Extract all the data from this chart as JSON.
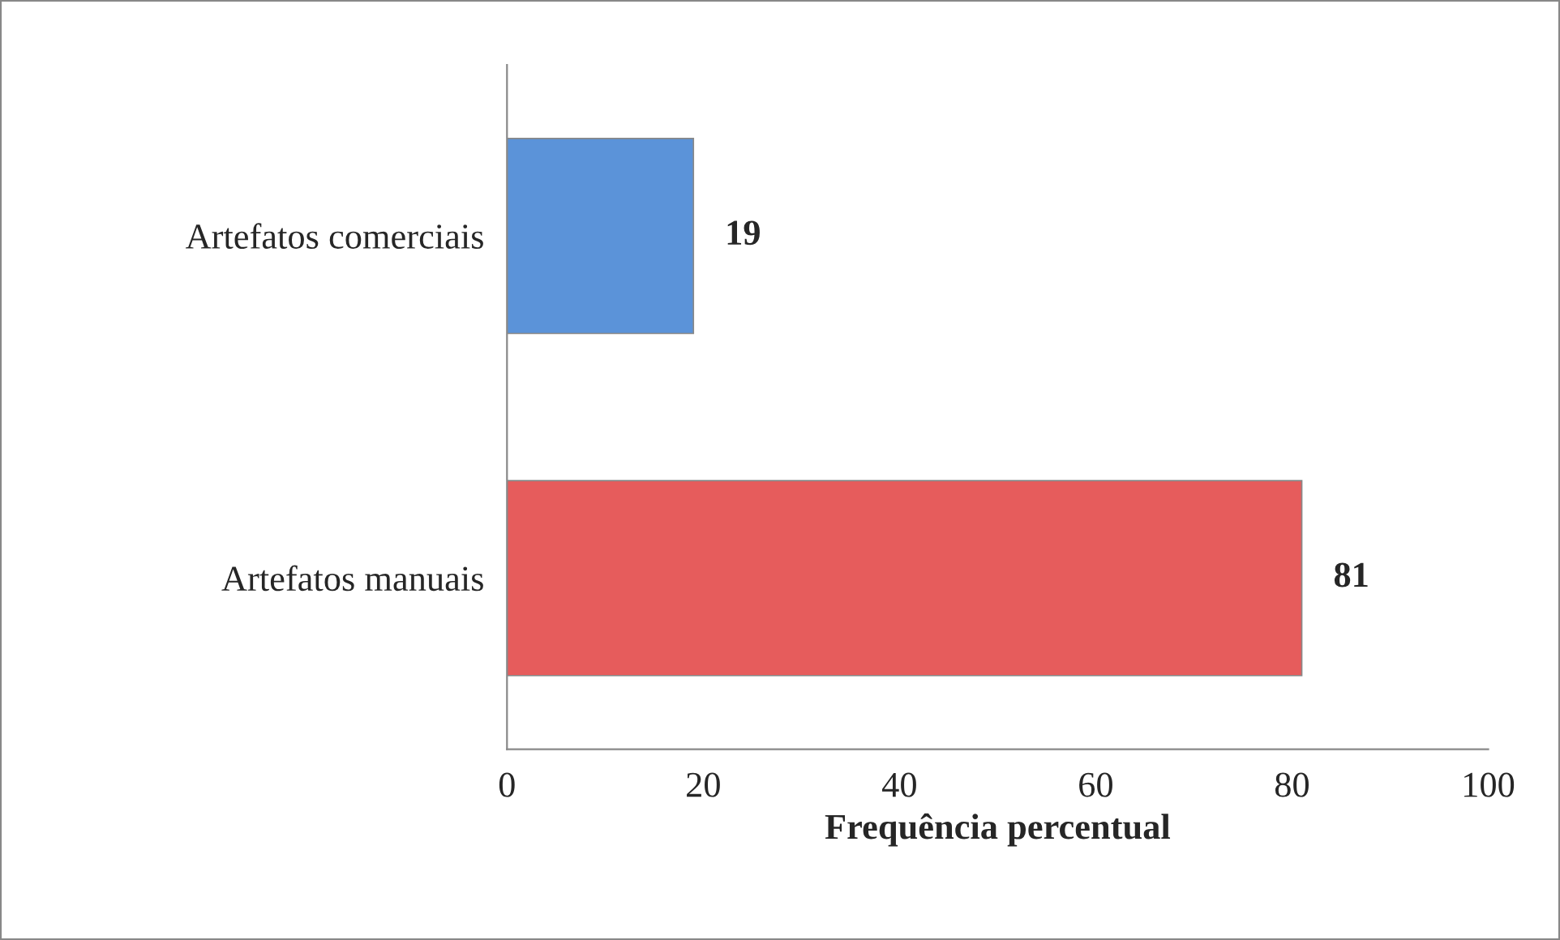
{
  "chart_data": {
    "type": "bar",
    "orientation": "horizontal",
    "categories": [
      "Artefatos comerciais",
      "Artefatos manuais"
    ],
    "values": [
      19,
      81
    ],
    "colors": [
      "#5b93d9",
      "#e65c5c"
    ],
    "xlabel": "Frequência percentual",
    "xlim": [
      0,
      100
    ],
    "xticks": [
      0,
      20,
      40,
      60,
      80,
      100
    ],
    "data_labels": true,
    "grid": false,
    "legend": false
  }
}
